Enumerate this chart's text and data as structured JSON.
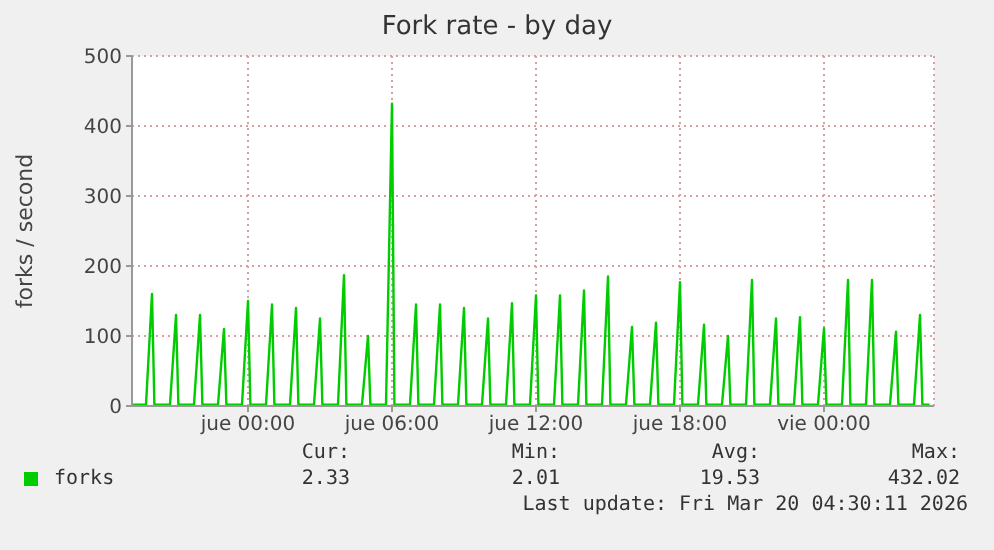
{
  "chart_data": {
    "type": "line",
    "title": "Fork rate - by day",
    "ylabel": "forks / second",
    "xlim": [
      "2026-03-18T19:10",
      "2026-03-20T04:35"
    ],
    "xticks": [
      {
        "value": "2026-03-19T00:00",
        "label": "jue 00:00"
      },
      {
        "value": "2026-03-19T06:00",
        "label": "jue 06:00"
      },
      {
        "value": "2026-03-19T12:00",
        "label": "jue 12:00"
      },
      {
        "value": "2026-03-19T18:00",
        "label": "jue 18:00"
      },
      {
        "value": "2026-03-20T00:00",
        "label": "vie 00:00"
      }
    ],
    "ylim": [
      0,
      500
    ],
    "yticks": [
      0,
      100,
      200,
      300,
      400,
      500
    ],
    "grid": true,
    "legend": "bottom",
    "series": [
      {
        "name": "forks",
        "color": "#00cc00",
        "x": [
          "2026-03-18T19:10",
          "2026-03-18T19:45",
          "2026-03-18T20:00",
          "2026-03-18T20:06",
          "2026-03-18T20:45",
          "2026-03-18T21:00",
          "2026-03-18T21:06",
          "2026-03-18T21:45",
          "2026-03-18T22:00",
          "2026-03-18T22:06",
          "2026-03-18T22:45",
          "2026-03-18T23:00",
          "2026-03-18T23:06",
          "2026-03-18T23:45",
          "2026-03-19T00:00",
          "2026-03-19T00:06",
          "2026-03-19T00:45",
          "2026-03-19T01:00",
          "2026-03-19T01:06",
          "2026-03-19T01:45",
          "2026-03-19T02:00",
          "2026-03-19T02:06",
          "2026-03-19T02:45",
          "2026-03-19T03:00",
          "2026-03-19T03:06",
          "2026-03-19T03:45",
          "2026-03-19T04:00",
          "2026-03-19T04:06",
          "2026-03-19T04:45",
          "2026-03-19T05:00",
          "2026-03-19T05:06",
          "2026-03-19T05:45",
          "2026-03-19T06:00",
          "2026-03-19T06:06",
          "2026-03-19T06:45",
          "2026-03-19T07:00",
          "2026-03-19T07:06",
          "2026-03-19T07:45",
          "2026-03-19T08:00",
          "2026-03-19T08:06",
          "2026-03-19T08:45",
          "2026-03-19T09:00",
          "2026-03-19T09:06",
          "2026-03-19T09:45",
          "2026-03-19T10:00",
          "2026-03-19T10:06",
          "2026-03-19T10:45",
          "2026-03-19T11:00",
          "2026-03-19T11:06",
          "2026-03-19T11:45",
          "2026-03-19T12:00",
          "2026-03-19T12:06",
          "2026-03-19T12:45",
          "2026-03-19T13:00",
          "2026-03-19T13:06",
          "2026-03-19T13:45",
          "2026-03-19T14:00",
          "2026-03-19T14:06",
          "2026-03-19T14:45",
          "2026-03-19T15:00",
          "2026-03-19T15:06",
          "2026-03-19T15:45",
          "2026-03-19T16:00",
          "2026-03-19T16:06",
          "2026-03-19T16:45",
          "2026-03-19T17:00",
          "2026-03-19T17:06",
          "2026-03-19T17:45",
          "2026-03-19T18:00",
          "2026-03-19T18:06",
          "2026-03-19T18:45",
          "2026-03-19T19:00",
          "2026-03-19T19:06",
          "2026-03-19T19:45",
          "2026-03-19T20:00",
          "2026-03-19T20:06",
          "2026-03-19T20:45",
          "2026-03-19T21:00",
          "2026-03-19T21:06",
          "2026-03-19T21:45",
          "2026-03-19T22:00",
          "2026-03-19T22:06",
          "2026-03-19T22:45",
          "2026-03-19T23:00",
          "2026-03-19T23:06",
          "2026-03-19T23:45",
          "2026-03-20T00:00",
          "2026-03-20T00:06",
          "2026-03-20T00:45",
          "2026-03-20T01:00",
          "2026-03-20T01:06",
          "2026-03-20T01:45",
          "2026-03-20T02:00",
          "2026-03-20T02:06",
          "2026-03-20T02:45",
          "2026-03-20T03:00",
          "2026-03-20T03:06",
          "2026-03-20T03:45",
          "2026-03-20T04:00",
          "2026-03-20T04:06",
          "2026-03-20T04:24"
        ],
        "values": [
          2,
          2,
          160,
          2,
          2,
          130,
          2,
          2,
          130,
          2,
          2,
          110,
          2,
          2,
          150,
          2,
          2,
          145,
          2,
          2,
          140,
          2,
          2,
          125,
          2,
          2,
          187,
          2,
          2,
          100,
          2,
          2,
          432,
          2,
          2,
          145,
          2,
          2,
          145,
          2,
          2,
          140,
          2,
          2,
          125,
          2,
          2,
          147,
          2,
          2,
          158,
          2,
          2,
          158,
          2,
          2,
          165,
          2,
          2,
          185,
          2,
          2,
          113,
          2,
          2,
          119,
          2,
          2,
          177,
          2,
          2,
          116,
          2,
          2,
          100,
          2,
          2,
          180,
          2,
          2,
          125,
          2,
          2,
          127,
          2,
          2,
          111,
          2,
          2,
          180,
          2,
          2,
          180,
          2,
          2,
          106,
          2,
          2,
          130,
          2,
          2
        ]
      }
    ],
    "annotations": [
      "Cur:",
      "Min:",
      "Avg:",
      "Max:",
      "2.33",
      "2.01",
      "19.53",
      "432.02",
      "Last update: Fri Mar 20 04:30:11 2026"
    ]
  }
}
